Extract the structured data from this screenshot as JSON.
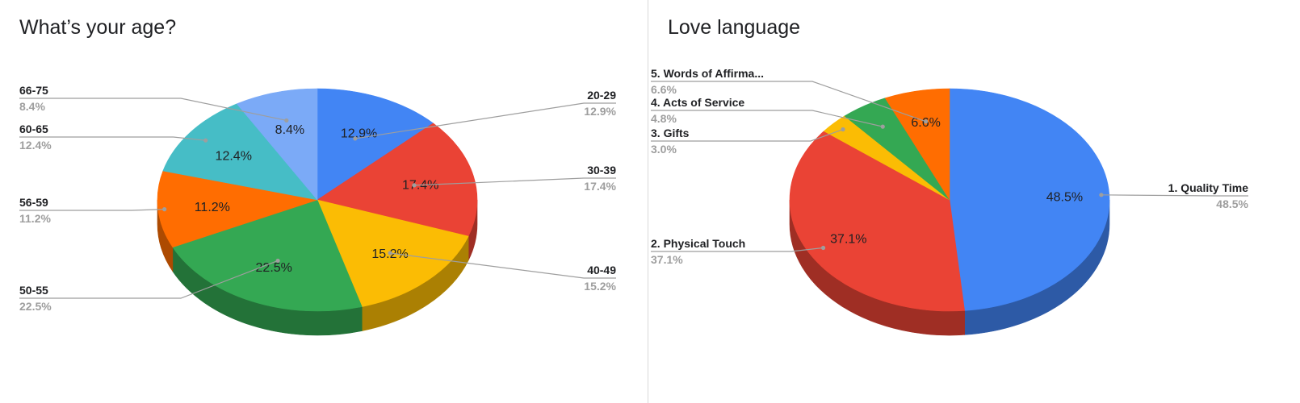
{
  "chart_data": [
    {
      "type": "pie",
      "title": "What’s your age?",
      "three_d": true,
      "start": "clockwise from top",
      "categories": [
        "20-29",
        "30-39",
        "40-49",
        "50-55",
        "56-59",
        "60-65",
        "66-75"
      ],
      "values": [
        12.9,
        17.4,
        15.2,
        22.5,
        11.2,
        12.4,
        8.4
      ],
      "labels": [
        "12.9%",
        "17.4%",
        "15.2%",
        "22.5%",
        "11.2%",
        "12.4%",
        "8.4%"
      ],
      "colors": [
        "#4285F4",
        "#EA4335",
        "#FBBC04",
        "#34A853",
        "#FF6D01",
        "#46BDC6",
        "#7BAAF7"
      ],
      "legend": "callouts"
    },
    {
      "type": "pie",
      "title": "Love language",
      "three_d": true,
      "start": "clockwise from top",
      "categories": [
        "1. Quality Time",
        "2. Physical Touch",
        "3. Gifts",
        "4. Acts of Service",
        "5. Words of Affirma..."
      ],
      "values": [
        48.5,
        37.1,
        3.0,
        4.8,
        6.6
      ],
      "labels": [
        "48.5%",
        "37.1%",
        "",
        "",
        "6.6%"
      ],
      "colors": [
        "#4285F4",
        "#EA4335",
        "#FBBC04",
        "#34A853",
        "#FF6D01"
      ],
      "legend": "callouts"
    }
  ]
}
